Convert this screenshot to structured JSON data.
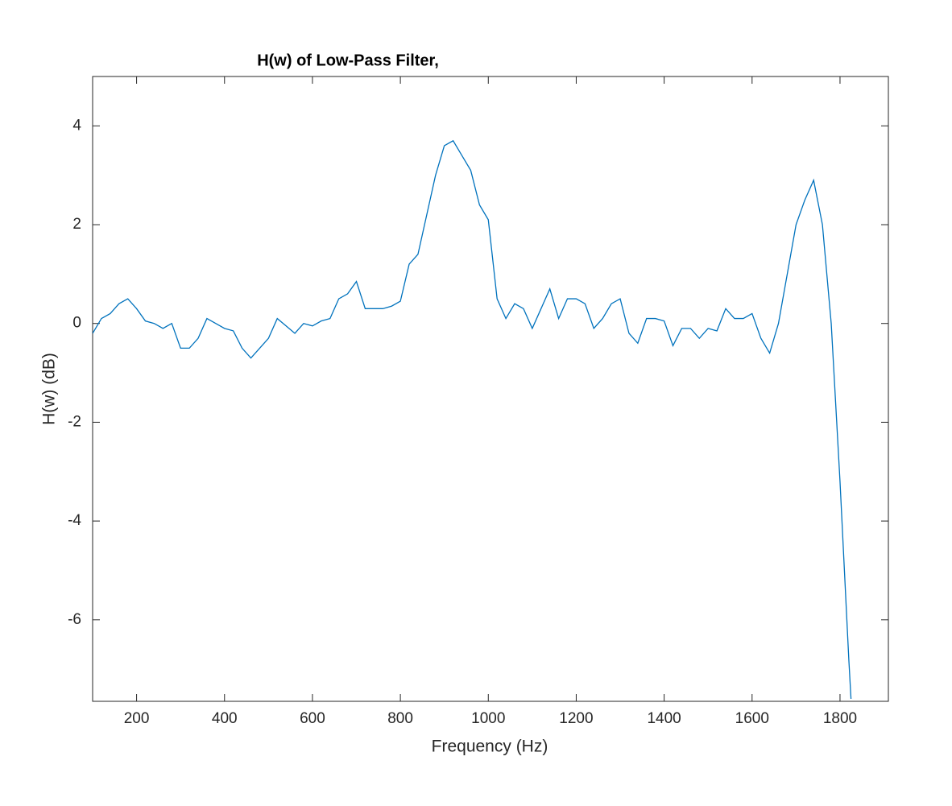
{
  "chart_data": {
    "type": "line",
    "title": "H(w) of Low-Pass Filter,",
    "x_label": "Frequency (Hz)",
    "y_label": "H(w) (dB)",
    "x": [
      100,
      120,
      140,
      160,
      180,
      200,
      220,
      240,
      260,
      280,
      300,
      320,
      340,
      360,
      380,
      400,
      420,
      440,
      460,
      480,
      500,
      520,
      540,
      560,
      580,
      600,
      620,
      640,
      660,
      680,
      700,
      720,
      740,
      760,
      780,
      800,
      820,
      840,
      860,
      880,
      900,
      920,
      940,
      960,
      980,
      1000,
      1020,
      1040,
      1060,
      1080,
      1100,
      1120,
      1140,
      1160,
      1180,
      1200,
      1220,
      1240,
      1260,
      1280,
      1300,
      1320,
      1340,
      1360,
      1380,
      1400,
      1420,
      1440,
      1460,
      1480,
      1500,
      1520,
      1540,
      1560,
      1580,
      1600,
      1620,
      1640,
      1660,
      1680,
      1700,
      1720,
      1740,
      1760,
      1780,
      1800,
      1820,
      1825
    ],
    "series": [
      {
        "color": "#0072bd",
        "values": [
          -0.2,
          0.1,
          0.2,
          0.4,
          0.5,
          0.3,
          0.05,
          0.0,
          -0.1,
          0.0,
          -0.5,
          -0.5,
          -0.3,
          0.1,
          0.0,
          -0.1,
          -0.15,
          -0.5,
          -0.7,
          -0.5,
          -0.3,
          0.1,
          -0.05,
          -0.2,
          0.0,
          -0.05,
          0.05,
          0.1,
          0.5,
          0.6,
          0.85,
          0.3,
          0.3,
          0.3,
          0.35,
          0.45,
          1.2,
          1.4,
          2.2,
          3.0,
          3.6,
          3.7,
          3.4,
          3.1,
          2.4,
          2.1,
          0.5,
          0.1,
          0.4,
          0.3,
          -0.1,
          0.3,
          0.7,
          0.1,
          0.5,
          0.5,
          0.4,
          -0.1,
          0.1,
          0.4,
          0.5,
          -0.2,
          -0.4,
          0.1,
          0.1,
          0.05,
          -0.45,
          -0.1,
          -0.1,
          -0.3,
          -0.1,
          -0.15,
          0.3,
          0.1,
          0.1,
          0.2,
          -0.3,
          -0.6,
          0.0,
          1.0,
          2.0,
          2.5,
          2.9,
          2.0,
          0.0,
          -3.2,
          -6.8,
          -7.6
        ]
      }
    ],
    "xlim": [
      100,
      1910
    ],
    "xticks": [
      200,
      400,
      600,
      800,
      1000,
      1200,
      1400,
      1600,
      1800
    ],
    "ylim": [
      -7.65,
      5
    ],
    "yticks": [
      -6,
      -4,
      -2,
      0,
      2,
      4
    ],
    "grid": false
  }
}
